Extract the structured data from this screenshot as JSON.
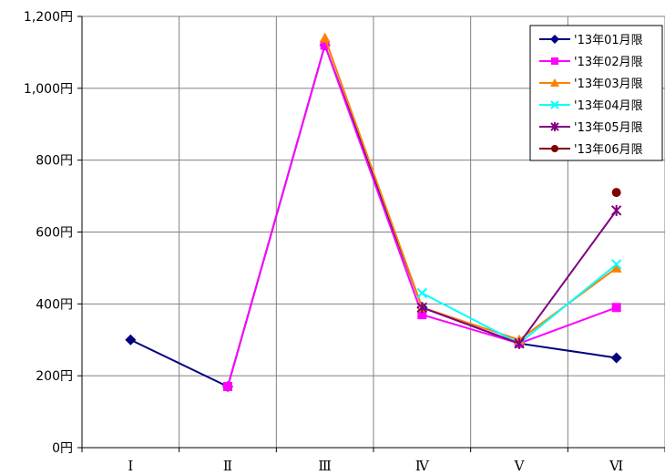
{
  "chart_data": {
    "type": "line",
    "categories": [
      "Ⅰ",
      "Ⅱ",
      "Ⅲ",
      "Ⅳ",
      "Ⅴ",
      "Ⅵ"
    ],
    "ylim": [
      0,
      1200
    ],
    "yticks": [
      0,
      200,
      400,
      600,
      800,
      1000,
      1200
    ],
    "ytick_labels": [
      "0円",
      "200円",
      "400円",
      "600円",
      "800円",
      "1,000円",
      "1,200円"
    ],
    "grid": true,
    "legend_position": "top-right",
    "series": [
      {
        "name": "'13年01月限",
        "color": "#000080",
        "marker": "diamond",
        "values": [
          300,
          170,
          1120,
          390,
          290,
          250
        ]
      },
      {
        "name": "'13年02月限",
        "color": "#ff00ff",
        "marker": "square",
        "values": [
          null,
          170,
          1120,
          370,
          290,
          390
        ]
      },
      {
        "name": "'13年03月限",
        "color": "#ff8000",
        "marker": "triangle",
        "values": [
          null,
          null,
          1140,
          390,
          300,
          500
        ]
      },
      {
        "name": "'13年04月限",
        "color": "#00ffff",
        "marker": "x",
        "values": [
          null,
          null,
          null,
          430,
          290,
          510
        ]
      },
      {
        "name": "'13年05月限",
        "color": "#800080",
        "marker": "asterisk",
        "values": [
          null,
          null,
          null,
          390,
          290,
          660
        ]
      },
      {
        "name": "'13年06月限",
        "color": "#800000",
        "marker": "circle",
        "values": [
          null,
          null,
          null,
          null,
          null,
          710
        ]
      }
    ]
  }
}
